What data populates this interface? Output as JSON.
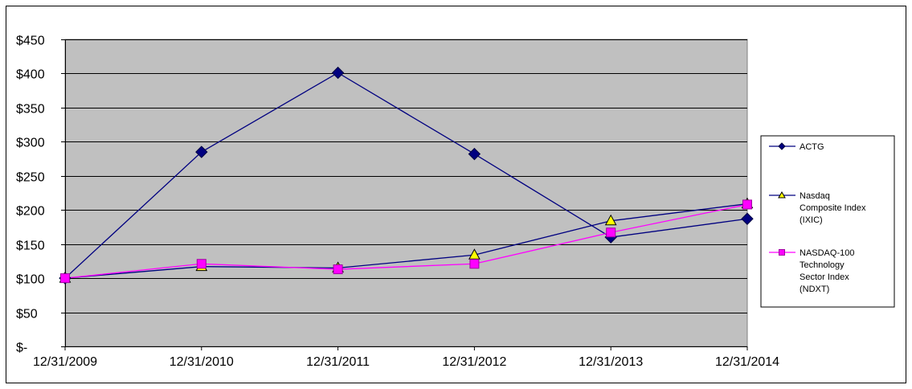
{
  "chart_data": {
    "type": "line",
    "title": "",
    "xlabel": "",
    "ylabel": "",
    "categories": [
      "12/31/2009",
      "12/31/2010",
      "12/31/2011",
      "12/31/2012",
      "12/31/2013",
      "12/31/2014"
    ],
    "ylim": [
      0,
      450
    ],
    "yticks": [
      0,
      50,
      100,
      150,
      200,
      250,
      300,
      350,
      400,
      450
    ],
    "ytick_labels": [
      "$-",
      "$50",
      "$100",
      "$150",
      "$200",
      "$250",
      "$300",
      "$350",
      "$400",
      "$450"
    ],
    "grid": true,
    "plot_background": "#c0c0c0",
    "legend_position": "right",
    "series": [
      {
        "name": "ACTG",
        "legend_lines": [
          "ACTG"
        ],
        "color": "#000080",
        "marker": "diamond",
        "marker_color": "#000080",
        "values": [
          100,
          285,
          401,
          282,
          160,
          187
        ]
      },
      {
        "name": "Nasdaq Composite Index (IXIC)",
        "legend_lines": [
          "Nasdaq",
          "Composite Index",
          "(IXIC)"
        ],
        "color": "#000080",
        "marker": "triangle",
        "marker_color": "#ffff00",
        "values": [
          100,
          117,
          115,
          134,
          184,
          209
        ]
      },
      {
        "name": "NASDAQ-100 Technology Sector Index (NDXT)",
        "legend_lines": [
          "NASDAQ-100",
          "Technology",
          "Sector Index",
          "(NDXT)"
        ],
        "color": "#ff00ff",
        "marker": "square",
        "marker_color": "#ff00ff",
        "values": [
          100,
          121,
          113,
          121,
          167,
          208
        ]
      }
    ]
  }
}
